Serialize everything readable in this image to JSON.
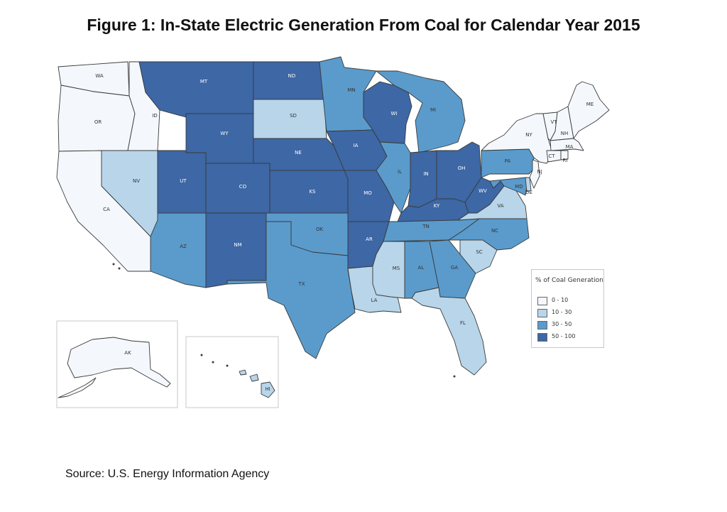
{
  "title": "Figure 1: In-State Electric Generation From Coal for Calendar Year 2015",
  "source": "Source: U.S. Energy Information Agency",
  "legend": {
    "title": "% of Coal Generation",
    "classes": [
      {
        "label": "0 - 10",
        "color": "#f4f8fc"
      },
      {
        "label": "10 - 30",
        "color": "#b8d5ea"
      },
      {
        "label": "30 - 50",
        "color": "#5a9bcc"
      },
      {
        "label": "50 - 100",
        "color": "#3d67a5"
      }
    ]
  },
  "states": {
    "WA": 0,
    "OR": 0,
    "CA": 0,
    "ID": 0,
    "NV": 1,
    "MT": 3,
    "WY": 3,
    "UT": 3,
    "AZ": 2,
    "CO": 3,
    "NM": 3,
    "ND": 3,
    "SD": 1,
    "NE": 3,
    "KS": 3,
    "OK": 2,
    "TX": 2,
    "MN": 2,
    "IA": 3,
    "MO": 3,
    "AR": 3,
    "LA": 1,
    "WI": 3,
    "IL": 2,
    "MI": 2,
    "IN": 3,
    "OH": 3,
    "KY": 3,
    "TN": 2,
    "MS": 1,
    "AL": 2,
    "GA": 2,
    "FL": 1,
    "SC": 1,
    "NC": 2,
    "VA": 1,
    "WV": 3,
    "PA": 2,
    "NY": 0,
    "VT": 0,
    "NH": 0,
    "ME": 0,
    "MA": 0,
    "CT": 0,
    "RI": 0,
    "NJ": 0,
    "DE": 1,
    "MD": 2,
    "AK": 0,
    "HI": 1
  }
}
